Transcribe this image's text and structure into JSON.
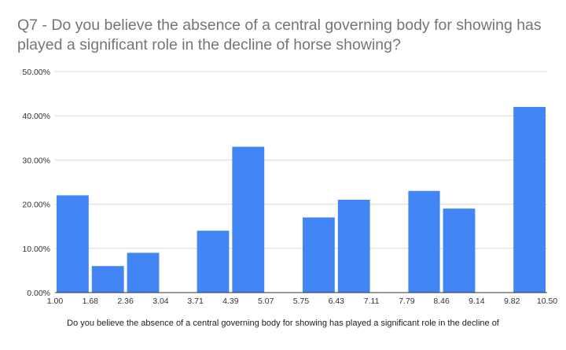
{
  "chart_data": {
    "type": "bar",
    "title": "Q7 - Do you believe the absence of a central governing body for showing has played a significant role in the decline of horse showing?",
    "xlabel": "Do you believe the absence of a central governing body for showing has played a significant role in the decline of",
    "ylabel": "",
    "y_ticks": [
      "0.00%",
      "10.00%",
      "20.00%",
      "30.00%",
      "40.00%",
      "50.00%"
    ],
    "ylim": [
      0,
      50
    ],
    "x_ticks": [
      "1.00",
      "1.68",
      "2.36",
      "3.04",
      "3.71",
      "4.39",
      "5.07",
      "5.75",
      "6.43",
      "7.11",
      "7.79",
      "8.46",
      "9.14",
      "9.82",
      "10.50"
    ],
    "bins": [
      {
        "x0": 1.0,
        "x1": 1.68,
        "value": 22
      },
      {
        "x0": 1.68,
        "x1": 2.36,
        "value": 6
      },
      {
        "x0": 2.36,
        "x1": 3.04,
        "value": 9
      },
      {
        "x0": 3.04,
        "x1": 3.71,
        "value": 0
      },
      {
        "x0": 3.71,
        "x1": 4.39,
        "value": 14
      },
      {
        "x0": 4.39,
        "x1": 5.07,
        "value": 33
      },
      {
        "x0": 5.07,
        "x1": 5.75,
        "value": 0
      },
      {
        "x0": 5.75,
        "x1": 6.43,
        "value": 17
      },
      {
        "x0": 6.43,
        "x1": 7.11,
        "value": 21
      },
      {
        "x0": 7.11,
        "x1": 7.79,
        "value": 0
      },
      {
        "x0": 7.79,
        "x1": 8.46,
        "value": 23
      },
      {
        "x0": 8.46,
        "x1": 9.14,
        "value": 19
      },
      {
        "x0": 9.14,
        "x1": 9.82,
        "value": 0
      },
      {
        "x0": 9.82,
        "x1": 10.5,
        "value": 42
      }
    ],
    "bar_color": "#4285f4",
    "grid": true
  }
}
